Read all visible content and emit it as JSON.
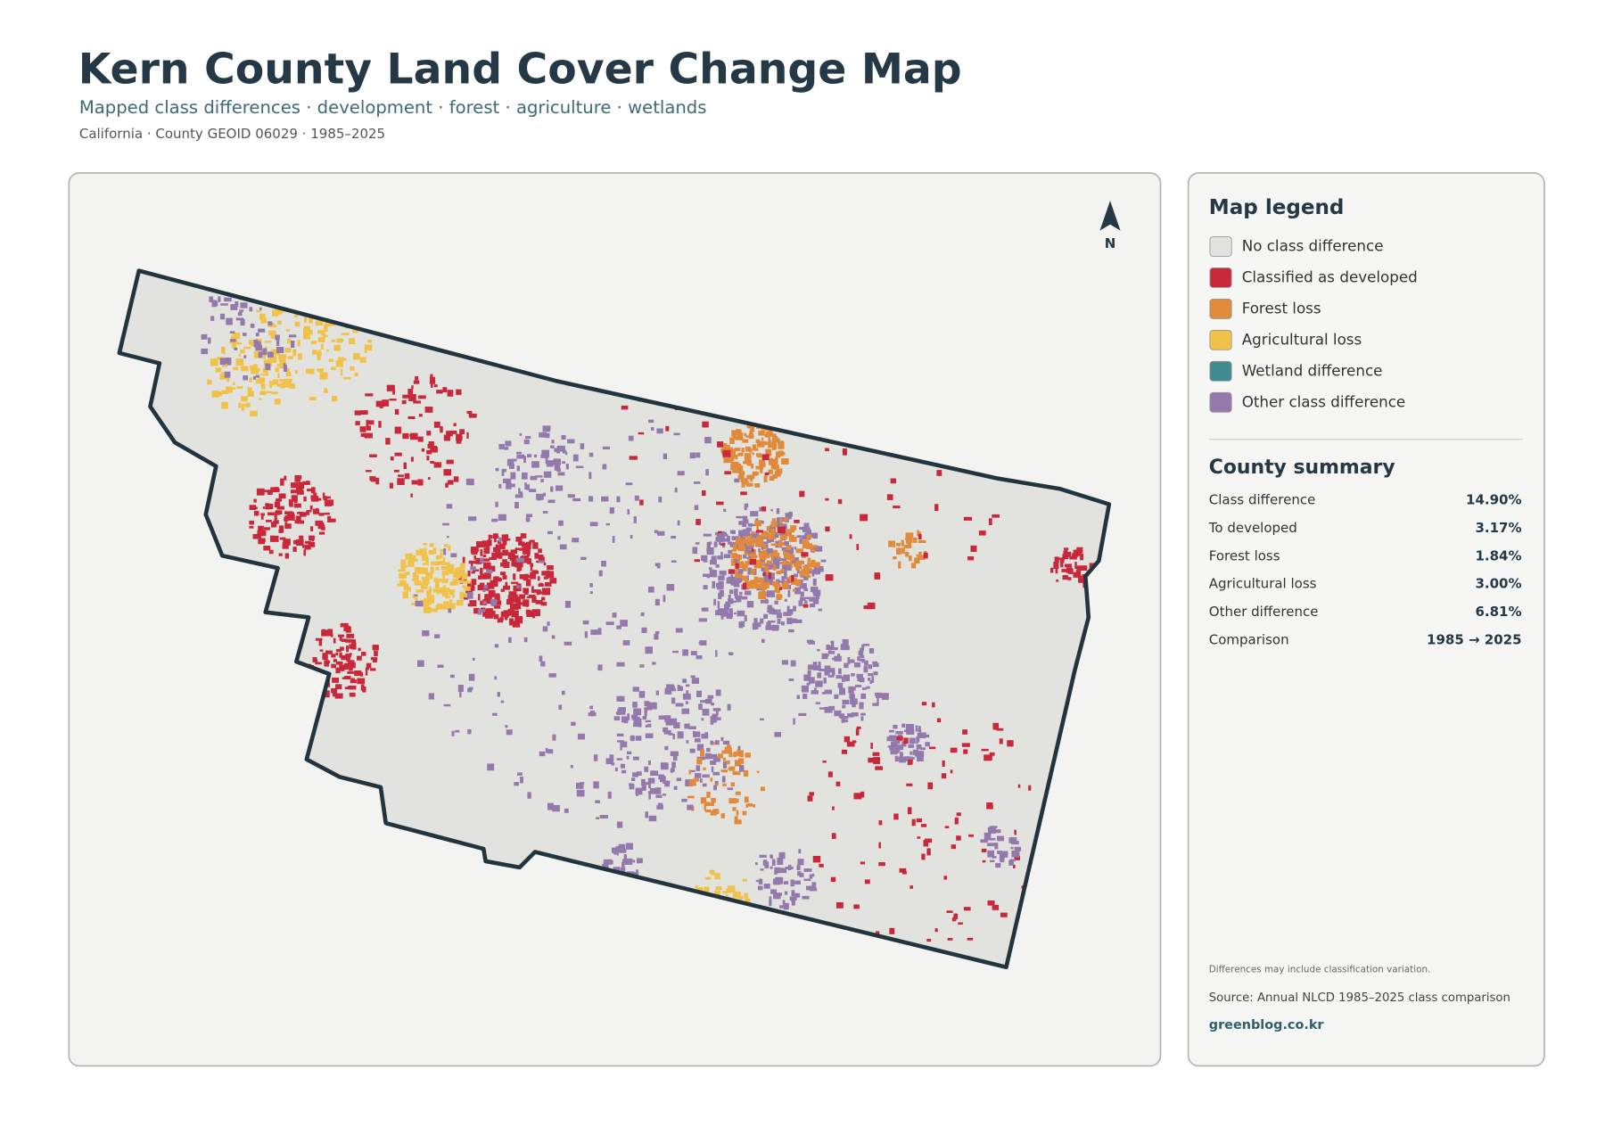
{
  "header": {
    "title": "Kern County Land Cover Change Map",
    "subtitle": "Mapped class differences · development · forest · agriculture · wetlands",
    "meta": "California · County GEOID 06029 · 1985–2025"
  },
  "map": {
    "north_label": "N"
  },
  "legend": {
    "title": "Map legend",
    "items": [
      {
        "label": "No class difference",
        "color": "#e2e2df"
      },
      {
        "label": "Classified as developed",
        "color": "#c8283a"
      },
      {
        "label": "Forest loss",
        "color": "#e08a3a"
      },
      {
        "label": "Agricultural loss",
        "color": "#f1c24a"
      },
      {
        "label": "Wetland difference",
        "color": "#3e8b92"
      },
      {
        "label": "Other class difference",
        "color": "#9479ad"
      }
    ]
  },
  "summary": {
    "title": "County summary",
    "rows": [
      [
        "Class difference",
        "14.90%"
      ],
      [
        "To developed",
        "3.17%"
      ],
      [
        "Forest loss",
        "1.84%"
      ],
      [
        "Agricultural loss",
        "3.00%"
      ],
      [
        "Other difference",
        "6.81%"
      ],
      [
        "Comparison",
        "1985 → 2025"
      ]
    ]
  },
  "notes": {
    "caveat": "Differences may include classification variation.",
    "source": "Source: Annual NLCD 1985–2025 class comparison",
    "credit": "greenblog.co.kr"
  }
}
